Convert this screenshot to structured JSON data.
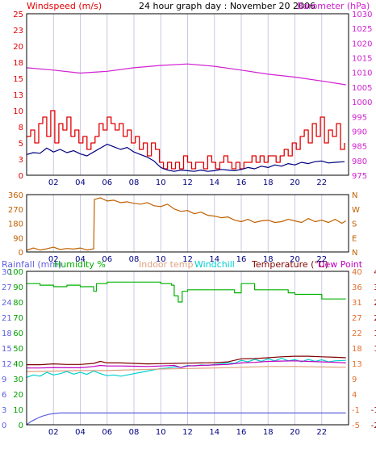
{
  "colors": {
    "bg": "#ffffff",
    "plot_bg": "#ffffff",
    "grid": "#c8c8e6",
    "frame": "#000000",
    "wind": "#e00000",
    "gust": "#000080",
    "baro": "#d020d0",
    "dir": "#c06000",
    "rain": "#6060e0",
    "humidity": "#00b000",
    "indoor": "#e0a080",
    "windchill": "#00d0d0",
    "temperature": "#800000",
    "dewpoint": "#c000c0",
    "axis_red": "#e00000",
    "axis_baro": "#d020d0",
    "axis_dir": "#c06000",
    "axis_green": "#00a000",
    "axis_orange": "#e07030"
  },
  "chart_data": [
    {
      "type": "line",
      "title": "24 hour graph day : November 20 2006",
      "left_label": "Windspeed (m/s)",
      "right_label": "Barometer (hPa)",
      "x_ticks": [
        "02",
        "04",
        "06",
        "08",
        "10",
        "12",
        "14",
        "16",
        "18",
        "20",
        "22"
      ],
      "y_left_ticks": [
        "25",
        "23",
        "20",
        "18",
        "15",
        "13",
        "10",
        "8",
        "5",
        "3",
        "0"
      ],
      "y_left_range": [
        0,
        25
      ],
      "y_right_ticks": [
        "1030",
        "1025",
        "1020",
        "1015",
        "1010",
        "1005",
        "1000",
        "995",
        "990",
        "985",
        "980",
        "975"
      ],
      "y_right_range": [
        975,
        1030
      ],
      "series": [
        {
          "name": "Barometer (hPa)",
          "axis": "right",
          "color_key": "baro",
          "x": [
            0,
            2,
            4,
            6,
            8,
            10,
            12,
            14,
            16,
            18,
            20,
            22,
            23.8
          ],
          "y": [
            1011.6,
            1010.8,
            1009.8,
            1010.4,
            1011.6,
            1012.4,
            1012.9,
            1012.1,
            1010.8,
            1009.4,
            1008.4,
            1007.1,
            1005.8
          ]
        },
        {
          "name": "Windspeed (m/s)",
          "axis": "left",
          "color_key": "wind",
          "x": [
            0,
            0.3,
            0.6,
            0.9,
            1.2,
            1.5,
            1.8,
            2.1,
            2.4,
            2.7,
            3.0,
            3.3,
            3.6,
            3.9,
            4.2,
            4.5,
            4.8,
            5.1,
            5.4,
            5.7,
            6.0,
            6.3,
            6.6,
            6.9,
            7.2,
            7.5,
            7.8,
            8.1,
            8.4,
            8.7,
            9.0,
            9.3,
            9.6,
            9.9,
            10.2,
            10.5,
            10.8,
            11.1,
            11.4,
            11.7,
            12.0,
            12.3,
            12.6,
            12.9,
            13.2,
            13.5,
            13.8,
            14.1,
            14.4,
            14.7,
            15.0,
            15.3,
            15.6,
            15.9,
            16.2,
            16.5,
            16.8,
            17.1,
            17.4,
            17.7,
            18.0,
            18.3,
            18.6,
            18.9,
            19.2,
            19.5,
            19.8,
            20.1,
            20.4,
            20.7,
            21.0,
            21.3,
            21.6,
            21.9,
            22.2,
            22.5,
            22.8,
            23.1,
            23.4,
            23.7
          ],
          "y": [
            6,
            7,
            5,
            8,
            9,
            6,
            10,
            5,
            8,
            7,
            9,
            6,
            7,
            5,
            6,
            4,
            5,
            6,
            8,
            7,
            9,
            8,
            7,
            8,
            6,
            7,
            5,
            6,
            4,
            5,
            3,
            5,
            4,
            2,
            1,
            2,
            1,
            2,
            1,
            3,
            2,
            1,
            2,
            2,
            1,
            3,
            2,
            1,
            2,
            3,
            2,
            1,
            2,
            1,
            2,
            2,
            3,
            2,
            3,
            2,
            3,
            3,
            2,
            3,
            4,
            3,
            5,
            4,
            6,
            7,
            5,
            8,
            6,
            9,
            5,
            7,
            6,
            8,
            4,
            5
          ]
        },
        {
          "name": "Gust",
          "axis": "left",
          "color_key": "gust",
          "x": [
            0,
            0.5,
            1.0,
            1.5,
            2.0,
            2.5,
            3.0,
            3.5,
            4.0,
            4.5,
            5.0,
            5.5,
            6.0,
            6.5,
            7.0,
            7.5,
            8.0,
            8.5,
            9.0,
            9.5,
            10.0,
            10.5,
            11.0,
            11.5,
            12.0,
            12.5,
            13.0,
            13.5,
            14.0,
            14.5,
            15.0,
            15.5,
            16.0,
            16.5,
            17.0,
            17.5,
            18.0,
            18.5,
            19.0,
            19.5,
            20.0,
            20.5,
            21.0,
            21.5,
            22.0,
            22.5,
            23.0,
            23.7
          ],
          "y": [
            3.2,
            3.5,
            3.4,
            4.2,
            3.6,
            4.0,
            3.5,
            3.8,
            3.3,
            3.0,
            3.6,
            4.2,
            4.8,
            4.4,
            4.0,
            4.3,
            3.6,
            3.2,
            2.8,
            2.2,
            1.2,
            0.8,
            0.6,
            0.8,
            0.7,
            0.6,
            0.8,
            0.6,
            0.7,
            0.9,
            0.8,
            0.7,
            0.9,
            1.2,
            1.0,
            1.4,
            1.2,
            1.6,
            1.4,
            1.8,
            1.6,
            2.0,
            1.8,
            2.1,
            2.2,
            1.9,
            2.0,
            2.1
          ]
        }
      ]
    },
    {
      "type": "line",
      "right_label": [
        "N",
        "W",
        "S",
        "E",
        "N"
      ],
      "x_ticks": [
        "02",
        "04",
        "06",
        "08",
        "10",
        "12",
        "14",
        "16",
        "18",
        "20",
        "22"
      ],
      "y_left_ticks": [
        "360",
        "270",
        "180",
        "90",
        "0"
      ],
      "y_left_range": [
        0,
        360
      ],
      "series": [
        {
          "name": "Wind direction",
          "color_key": "dir",
          "x": [
            0,
            0.5,
            1.0,
            1.5,
            2.0,
            2.5,
            3.0,
            3.5,
            4.0,
            4.5,
            5.0,
            5.05,
            5.5,
            6.0,
            6.5,
            7.0,
            7.5,
            8.0,
            8.5,
            9.0,
            9.5,
            10.0,
            10.5,
            11.0,
            11.5,
            12.0,
            12.5,
            13.0,
            13.5,
            14.0,
            14.5,
            15.0,
            15.5,
            16.0,
            16.5,
            17.0,
            17.5,
            18.0,
            18.5,
            19.0,
            19.5,
            20.0,
            20.5,
            21.0,
            21.5,
            22.0,
            22.5,
            23.0,
            23.5,
            23.8
          ],
          "y": [
            10,
            25,
            12,
            20,
            30,
            15,
            22,
            18,
            25,
            12,
            20,
            330,
            340,
            320,
            325,
            310,
            315,
            305,
            300,
            310,
            290,
            285,
            300,
            270,
            255,
            260,
            240,
            250,
            230,
            225,
            215,
            220,
            200,
            190,
            205,
            185,
            195,
            200,
            185,
            190,
            205,
            195,
            185,
            210,
            190,
            200,
            185,
            205,
            180,
            195
          ]
        }
      ]
    },
    {
      "type": "line",
      "legend": [
        "Rainfall (mm)",
        "Humidity %",
        "Indoor temp",
        "Windchill",
        "Temperature (°C)",
        "Dew Point"
      ],
      "x_ticks": [
        "02",
        "04",
        "06",
        "08",
        "10",
        "12",
        "14",
        "16",
        "18",
        "20",
        "22"
      ],
      "y_left_rain_ticks": [
        "30",
        "27",
        "24",
        "21",
        "18",
        "15",
        "12",
        "9",
        "6",
        "3",
        "0"
      ],
      "y_left_rain_range": [
        0,
        30
      ],
      "y_left_hum_ticks": [
        "100",
        "90",
        "80",
        "70",
        "60",
        "50",
        "40",
        "30",
        "20",
        "10",
        "0"
      ],
      "y_left_hum_range": [
        0,
        100
      ],
      "y_right_indoor_ticks": [
        "40",
        "36",
        "31",
        "27",
        "22",
        "18",
        "13",
        "9",
        "4",
        "-1",
        "-5"
      ],
      "y_right_temp_ticks": [
        "40",
        "34",
        "28",
        "22",
        "16",
        "10",
        "4",
        "-2",
        "-8",
        "-14",
        "-20"
      ],
      "y_right_temp_range": [
        -20,
        40
      ],
      "series": [
        {
          "name": "Humidity %",
          "axis": "humidity",
          "color_key": "humidity",
          "x": [
            0,
            1,
            2,
            3,
            4,
            4.8,
            5.0,
            5.2,
            6,
            7,
            8,
            9,
            10,
            10.8,
            11.0,
            11.3,
            11.6,
            12,
            13,
            14,
            15,
            15.5,
            16,
            17,
            18,
            19,
            19.5,
            20,
            21,
            22,
            23,
            23.8
          ],
          "y": [
            92,
            91,
            90,
            91,
            90,
            90,
            87,
            92,
            93,
            93,
            93,
            93,
            92,
            91,
            84,
            80,
            87,
            88,
            88,
            88,
            88,
            86,
            92,
            88,
            88,
            88,
            86,
            85,
            85,
            82,
            82,
            82
          ]
        },
        {
          "name": "Rainfall (mm)",
          "axis": "rain",
          "color_key": "rain",
          "x": [
            0,
            0.3,
            0.6,
            0.9,
            1.2,
            1.6,
            2.0,
            2.5,
            23.8
          ],
          "y": [
            0,
            0.6,
            1.0,
            1.4,
            1.7,
            2.0,
            2.2,
            2.3,
            2.3
          ]
        },
        {
          "name": "Windchill",
          "axis": "temp",
          "color_key": "windchill",
          "x": [
            0,
            0.5,
            1.0,
            1.5,
            2.0,
            2.5,
            3.0,
            3.5,
            4.0,
            4.5,
            5.0,
            5.5,
            6.0,
            6.5,
            7.0,
            7.5,
            8.0,
            8.5,
            9.0,
            9.5,
            10.0,
            10.5,
            11.0,
            11.5,
            12.0,
            12.5,
            13.0,
            13.5,
            14.0,
            14.5,
            15.0,
            15.5,
            16.0,
            16.5,
            17.0,
            17.5,
            18.0,
            18.5,
            19.0,
            19.5,
            20.0,
            20.5,
            21.0,
            21.5,
            22.0,
            22.5,
            23.0,
            23.8
          ],
          "y": [
            -1.5,
            -0.5,
            -1.0,
            0.5,
            -0.5,
            0.0,
            0.8,
            -0.2,
            0.5,
            -0.3,
            1.0,
            0.0,
            -0.8,
            -0.5,
            -1.0,
            -0.5,
            0.0,
            0.5,
            1.0,
            1.5,
            2.0,
            2.2,
            2.6,
            2.5,
            3.2,
            3.0,
            3.4,
            3.2,
            3.6,
            3.8,
            4.2,
            4.0,
            5.2,
            4.6,
            5.6,
            4.8,
            5.8,
            5.0,
            6.0,
            5.0,
            5.5,
            4.6,
            5.6,
            4.8,
            5.4,
            4.6,
            5.0,
            5.2
          ]
        },
        {
          "name": "Indoor temp",
          "axis": "temp",
          "color_key": "indoor",
          "x": [
            0,
            2,
            4,
            6,
            8,
            10,
            12,
            14,
            16,
            18,
            20,
            22,
            23.8
          ],
          "y": [
            0.8,
            1.0,
            1.2,
            1.2,
            1.5,
            1.8,
            2.0,
            2.2,
            2.5,
            2.8,
            2.8,
            2.6,
            2.5
          ]
        },
        {
          "name": "Temperature (°C)",
          "axis": "temp",
          "color_key": "temperature",
          "x": [
            0,
            1,
            2,
            3,
            4,
            5,
            5.5,
            6,
            7,
            8,
            9,
            10,
            11,
            12,
            13,
            14,
            15,
            16,
            17,
            18,
            19,
            20,
            21,
            22,
            23,
            23.8
          ],
          "y": [
            3.5,
            3.5,
            3.8,
            3.6,
            3.6,
            4.0,
            4.8,
            4.2,
            4.2,
            4.0,
            3.8,
            3.9,
            4.0,
            4.1,
            4.2,
            4.3,
            4.6,
            5.8,
            5.9,
            6.2,
            6.6,
            6.8,
            6.8,
            6.6,
            6.4,
            6.2
          ]
        },
        {
          "name": "Dew Point",
          "axis": "temp",
          "color_key": "dewpoint",
          "x": [
            0,
            1,
            2,
            3,
            4,
            5,
            5.5,
            6,
            7,
            8,
            9,
            10,
            11,
            11.5,
            12,
            13,
            14,
            15,
            16,
            17,
            18,
            19,
            20,
            21,
            22,
            23,
            23.8
          ],
          "y": [
            2.2,
            2.2,
            2.4,
            2.3,
            2.3,
            2.8,
            3.2,
            3.0,
            3.0,
            2.9,
            2.8,
            3.0,
            3.2,
            2.4,
            3.0,
            3.2,
            3.4,
            3.6,
            4.2,
            4.4,
            4.8,
            4.9,
            5.0,
            4.8,
            4.6,
            4.4,
            4.2
          ]
        }
      ]
    }
  ]
}
